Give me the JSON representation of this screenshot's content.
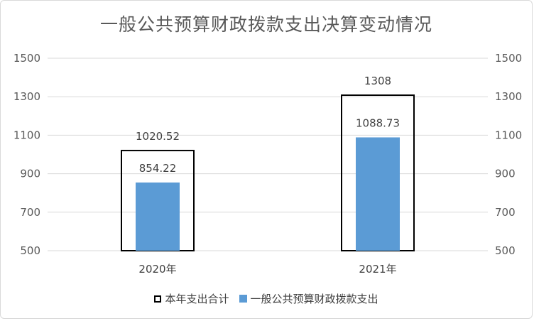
{
  "chart_data": {
    "type": "bar",
    "title": "一般公共预算财政拨款支出决算变动情况",
    "categories": [
      "2020年",
      "2021年"
    ],
    "series": [
      {
        "name": "本年支出合计",
        "values": [
          1020.52,
          1308
        ],
        "labels": [
          "1020.52",
          "1308"
        ],
        "style": "outline",
        "color": "#000000"
      },
      {
        "name": "一般公共预算财政拨款支出",
        "values": [
          854.22,
          1088.73
        ],
        "labels": [
          "854.22",
          "1088.73"
        ],
        "style": "fill",
        "color": "#5b9bd5"
      }
    ],
    "yticks": [
      "500",
      "700",
      "900",
      "1100",
      "1300",
      "1500"
    ],
    "ylim": [
      500,
      1500
    ],
    "grid": true,
    "secondary_axis": true,
    "legend": "bottom"
  }
}
